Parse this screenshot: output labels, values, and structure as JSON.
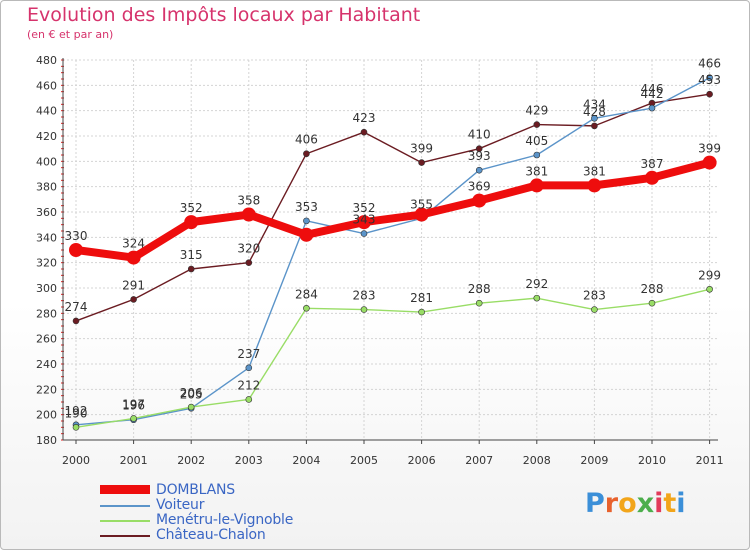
{
  "title": "Evolution des Impôts locaux par Habitant",
  "subtitle": "(en € et par an)",
  "logo": {
    "text": "Proxiti",
    "letters": [
      "P",
      "r",
      "o",
      "x",
      "i",
      "t",
      "i"
    ],
    "colors": [
      "#3b8fd8",
      "#e8612c",
      "#f2a51a",
      "#4cae4c",
      "#e23b5a",
      "#f2a51a",
      "#3b8fd8"
    ]
  },
  "chart_data": {
    "type": "line",
    "title": "Evolution des Impôts locaux par Habitant",
    "subtitle": "(en € et par an)",
    "x": [
      "2000",
      "2001",
      "2002",
      "2003",
      "2004",
      "2005",
      "2006",
      "2007",
      "2008",
      "2009",
      "2010",
      "2011"
    ],
    "ylim": [
      180,
      480
    ],
    "yticks": [
      180,
      200,
      220,
      240,
      260,
      280,
      300,
      320,
      340,
      360,
      380,
      400,
      420,
      440,
      460,
      480
    ],
    "grid": true,
    "legend_position": "bottom-left",
    "series": [
      {
        "name": "DOMBLANS",
        "color": "#ee0d0d",
        "bold": true,
        "values": [
          330,
          324,
          352,
          358,
          342,
          352,
          358,
          369,
          381,
          381,
          387,
          399
        ],
        "labels": [
          "330",
          "324",
          "352",
          "358",
          "",
          "352",
          "",
          "369",
          "381",
          "381",
          "387",
          "399"
        ]
      },
      {
        "name": "Voiteur",
        "color": "#5b94c9",
        "bold": false,
        "values": [
          192,
          196,
          205,
          237,
          353,
          343,
          355,
          393,
          405,
          434,
          442,
          466
        ],
        "labels": [
          "192",
          "196",
          "205",
          "237",
          "353",
          "343",
          "355",
          "393",
          "405",
          "434",
          "442",
          "466"
        ]
      },
      {
        "name": "Menétru-le-Vignoble",
        "color": "#99dd66",
        "bold": false,
        "values": [
          190,
          197,
          206,
          212,
          284,
          283,
          281,
          288,
          292,
          283,
          288,
          299
        ],
        "labels": [
          "190",
          "197",
          "206",
          "212",
          "284",
          "283",
          "281",
          "288",
          "292",
          "283",
          "288",
          "299"
        ]
      },
      {
        "name": "Château-Chalon",
        "color": "#6b1c22",
        "bold": false,
        "values": [
          274,
          291,
          315,
          320,
          406,
          423,
          399,
          410,
          429,
          428,
          446,
          453
        ],
        "labels": [
          "274",
          "291",
          "315",
          "320",
          "406",
          "423",
          "399",
          "410",
          "429",
          "428",
          "446",
          "453"
        ]
      }
    ]
  }
}
